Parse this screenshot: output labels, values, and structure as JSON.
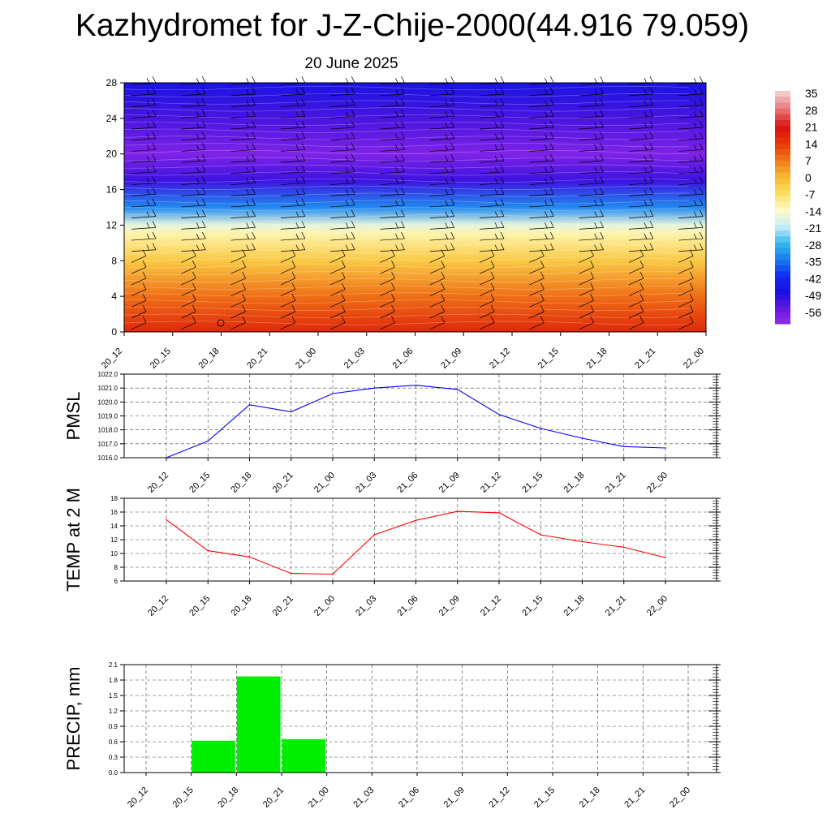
{
  "title": "Kazhydromet for J-Z-Chije-2000(44.916 79.059)",
  "subtitle": "20 June 2025",
  "chart_data": [
    {
      "type": "heatmap",
      "name": "vertical-profile",
      "x": [
        "20_12",
        "20_15",
        "20_18",
        "20_21",
        "21_00",
        "21_03",
        "21_06",
        "21_09",
        "21_12",
        "21_15",
        "21_18",
        "21_21",
        "22_00"
      ],
      "y_ticks": [
        "0",
        "4",
        "8",
        "12",
        "16",
        "20",
        "24",
        "28"
      ],
      "ylim": [
        0,
        28
      ],
      "color_scale": {
        "labels": [
          "35",
          "28",
          "21",
          "14",
          "7",
          "0",
          "-7",
          "-14",
          "-21",
          "-28",
          "-35",
          "-42",
          "-49",
          "-56"
        ],
        "colors_top_to_bottom": [
          "#f0c8c8",
          "#e87070",
          "#d81010",
          "#e83808",
          "#f07818",
          "#f8b830",
          "#fce060",
          "#fdfac8",
          "#c8ecf8",
          "#30b8f0",
          "#1a78f0",
          "#1028f0",
          "#1a10e0",
          "#6a18e0",
          "#9a30f0"
        ]
      },
      "temperature_by_level": [
        {
          "level": 0,
          "value": 20
        },
        {
          "level": 4,
          "value": 11
        },
        {
          "level": 8,
          "value": 0
        },
        {
          "level": 11,
          "value": -9
        },
        {
          "level": 12,
          "value": -14
        },
        {
          "level": 14,
          "value": -30
        },
        {
          "level": 17,
          "value": -49
        },
        {
          "level": 20,
          "value": -56
        },
        {
          "level": 24,
          "value": -50
        },
        {
          "level": 28,
          "value": -45
        }
      ],
      "wind_barbs": true
    },
    {
      "type": "line",
      "name": "pmsl",
      "ylabel": "PMSL",
      "categories": [
        "20_12",
        "20_15",
        "20_18",
        "20_21",
        "21_00",
        "21_03",
        "21_06",
        "21_09",
        "21_12",
        "21_15",
        "21_18",
        "21_21",
        "22_00"
      ],
      "values": [
        1016.0,
        1017.2,
        1019.8,
        1019.3,
        1020.6,
        1021.0,
        1021.2,
        1020.9,
        1019.1,
        1018.1,
        1017.4,
        1016.8,
        1016.7
      ],
      "ylim": [
        1016.0,
        1022.0
      ],
      "y_ticks": [
        "1016.0",
        "1017.0",
        "1018.0",
        "1019.0",
        "1020.0",
        "1021.0",
        "1022.0"
      ],
      "color": "#0000ff",
      "grid": true
    },
    {
      "type": "line",
      "name": "temp-2m",
      "ylabel": "TEMP at 2 M",
      "categories": [
        "20_12",
        "20_15",
        "20_18",
        "20_21",
        "21_00",
        "21_03",
        "21_06",
        "21_09",
        "21_12",
        "21_15",
        "21_18",
        "21_21",
        "22_00"
      ],
      "values": [
        14.9,
        10.4,
        9.5,
        7.1,
        7.0,
        12.7,
        14.8,
        16.1,
        15.9,
        12.7,
        11.7,
        10.9,
        9.4
      ],
      "ylim": [
        6,
        18
      ],
      "y_ticks": [
        "6",
        "8",
        "10",
        "12",
        "14",
        "16",
        "18"
      ],
      "color": "#ff0000",
      "grid": true
    },
    {
      "type": "bar",
      "name": "precip",
      "ylabel": "PRECIP, mm",
      "categories": [
        "20_12",
        "20_15",
        "20_18",
        "20_21",
        "21_00",
        "21_03",
        "21_06",
        "21_09",
        "21_12",
        "21_15",
        "21_18",
        "21_21",
        "22_00"
      ],
      "values": [
        0,
        0.62,
        1.87,
        0.65,
        0,
        0,
        0,
        0,
        0,
        0,
        0,
        0,
        0
      ],
      "ylim": [
        0,
        2.1
      ],
      "y_ticks": [
        "0.0",
        "0.3",
        "0.6",
        "0.9",
        "1.2",
        "1.5",
        "1.8",
        "2.1"
      ],
      "color": "#00ee00",
      "grid": true
    }
  ]
}
